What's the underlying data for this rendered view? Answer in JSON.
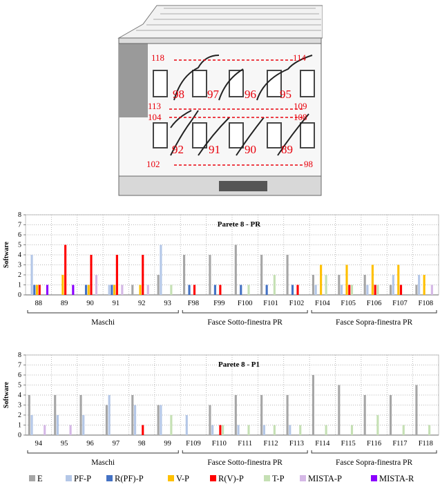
{
  "facade": {
    "node_labels": [
      "118",
      "114",
      "113",
      "109",
      "104",
      "108",
      "102",
      "98"
    ],
    "pier_labels": [
      "98",
      "97",
      "96",
      "95",
      "92",
      "91",
      "90",
      "89"
    ]
  },
  "chart_data": [
    {
      "type": "bar",
      "title": "Parete 8 - PR",
      "ylabel": "Software",
      "ylim": [
        0,
        8
      ],
      "categories": [
        "88",
        "89",
        "90",
        "91",
        "92",
        "93",
        "F98",
        "F99",
        "F100",
        "F101",
        "F102",
        "F104",
        "F105",
        "F106",
        "F107",
        "F108"
      ],
      "groups": [
        {
          "label": "Maschi",
          "from": 0,
          "to": 5
        },
        {
          "label": "Fasce Sotto-finestra PR",
          "from": 6,
          "to": 10
        },
        {
          "label": "Fasce Sopra-finestra PR",
          "from": 11,
          "to": 15
        }
      ],
      "series": [
        {
          "name": "E",
          "values": [
            0,
            0,
            0,
            0,
            1,
            2,
            4,
            4,
            5,
            4,
            4,
            2,
            2,
            2,
            1,
            1
          ]
        },
        {
          "name": "PF-P",
          "values": [
            4,
            0,
            0,
            1,
            0,
            5,
            0,
            0,
            0,
            0,
            0,
            1,
            1,
            1,
            2,
            2
          ]
        },
        {
          "name": "R(PF)-P",
          "values": [
            1,
            0,
            1,
            1,
            0,
            0,
            1,
            1,
            1,
            1,
            1,
            0,
            0,
            0,
            0,
            0
          ]
        },
        {
          "name": "V-P",
          "values": [
            1,
            2,
            1,
            1,
            1,
            0,
            0,
            0,
            0,
            0,
            0,
            3,
            3,
            3,
            3,
            2
          ]
        },
        {
          "name": "R(V)-P",
          "values": [
            1,
            5,
            4,
            4,
            4,
            0,
            1,
            1,
            0,
            0,
            1,
            0,
            1,
            1,
            1,
            0
          ]
        },
        {
          "name": "T-P",
          "values": [
            0,
            0,
            0,
            0,
            0,
            1,
            0,
            0,
            1,
            2,
            0,
            2,
            1,
            1,
            0,
            0
          ]
        },
        {
          "name": "MISTA-P",
          "values": [
            0,
            0,
            2,
            1,
            1,
            0,
            0,
            0,
            0,
            0,
            0,
            0,
            0,
            0,
            0,
            1
          ]
        },
        {
          "name": "MISTA-R",
          "values": [
            1,
            1,
            0,
            0,
            0,
            0,
            0,
            0,
            0,
            0,
            0,
            0,
            0,
            0,
            0,
            0
          ]
        }
      ]
    },
    {
      "type": "bar",
      "title": "Parete 8 - P1",
      "ylabel": "Software",
      "ylim": [
        0,
        8
      ],
      "categories": [
        "94",
        "95",
        "96",
        "97",
        "98",
        "99",
        "F109",
        "F110",
        "F111",
        "F112",
        "F113",
        "F114",
        "F115",
        "F116",
        "F117",
        "F118"
      ],
      "groups": [
        {
          "label": "Maschi",
          "from": 0,
          "to": 5
        },
        {
          "label": "Fasce Sotto-finestra PR",
          "from": 6,
          "to": 10
        },
        {
          "label": "Fasce Sopra-finestra PR",
          "from": 11,
          "to": 15
        }
      ],
      "series": [
        {
          "name": "E",
          "values": [
            4,
            4,
            4,
            3,
            4,
            3,
            0,
            3,
            4,
            4,
            4,
            6,
            5,
            4,
            4,
            5
          ]
        },
        {
          "name": "PF-P",
          "values": [
            2,
            2,
            2,
            4,
            3,
            3,
            2,
            1,
            1,
            1,
            1,
            0,
            0,
            0,
            0,
            0
          ]
        },
        {
          "name": "R(PF)-P",
          "values": [
            0,
            0,
            0,
            0,
            0,
            0,
            0,
            0,
            0,
            0,
            0,
            0,
            0,
            0,
            0,
            0
          ]
        },
        {
          "name": "V-P",
          "values": [
            0,
            0,
            0,
            0,
            0,
            0,
            0,
            0,
            0,
            0,
            0,
            0,
            0,
            0,
            0,
            0
          ]
        },
        {
          "name": "R(V)-P",
          "values": [
            0,
            0,
            0,
            0,
            1,
            0,
            0,
            1,
            0,
            0,
            0,
            0,
            0,
            0,
            0,
            0
          ]
        },
        {
          "name": "T-P",
          "values": [
            0,
            0,
            0,
            0,
            0,
            2,
            0,
            1,
            1,
            1,
            1,
            1,
            1,
            2,
            1,
            1
          ]
        },
        {
          "name": "MISTA-P",
          "values": [
            1,
            1,
            0,
            0,
            0,
            0,
            0,
            0,
            0,
            0,
            0,
            0,
            0,
            0,
            0,
            0
          ]
        },
        {
          "name": "MISTA-R",
          "values": [
            0,
            0,
            0,
            0,
            0,
            0,
            0,
            0,
            0,
            0,
            0,
            0,
            0,
            0,
            0,
            0
          ]
        }
      ]
    }
  ],
  "colors": {
    "E": "#a6a6a6",
    "PF-P": "#b4c7e7",
    "R(PF)-P": "#4472c4",
    "V-P": "#ffc000",
    "R(V)-P": "#ff0000",
    "T-P": "#c5e0b4",
    "MISTA-P": "#d5b8e6",
    "MISTA-R": "#8b00ff",
    "label_red": "#e8000b"
  }
}
